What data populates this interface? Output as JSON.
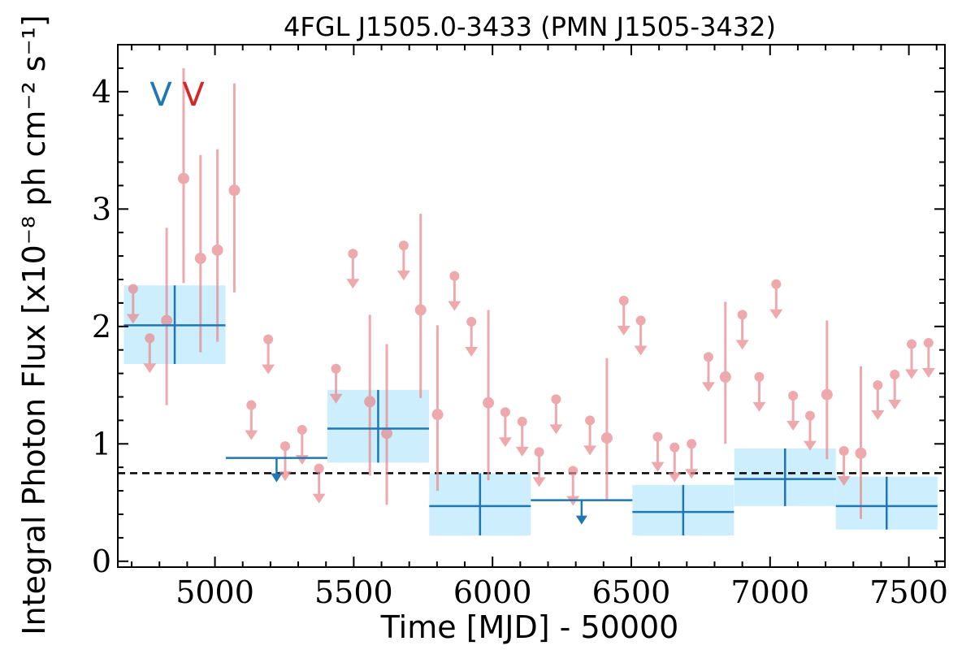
{
  "chart_data": {
    "type": "scatter",
    "title": "4FGL J1505.0-3433 (PMN J1505-3432)",
    "xlabel": "Time [MJD] - 50000",
    "ylabel": "Integral Photon Flux [x10⁻⁸ ph cm⁻² s⁻¹]",
    "xlim": [
      4650,
      7630
    ],
    "ylim": [
      -0.05,
      4.4
    ],
    "xticks": [
      5000,
      5500,
      6000,
      6500,
      7000,
      7500
    ],
    "yticks": [
      0,
      1,
      2,
      3,
      4
    ],
    "grid": false,
    "corner_marks": [
      {
        "text": "V",
        "color": "#1f77b4"
      },
      {
        "text": "V",
        "color": "#d62728"
      }
    ],
    "reference_line": {
      "y": 0.75,
      "style": "dashed",
      "color": "#000000"
    },
    "colors": {
      "long_bins": "#1f77b4",
      "long_bins_band": "#cdeefc",
      "short_bins": "#e8898d"
    },
    "series": [
      {
        "kind": "long-bins",
        "color": "#1f77b4",
        "points": [
          {
            "x": 4855,
            "xerr": 183,
            "y": 2.01,
            "ylo": 1.68,
            "yhi": 2.35
          },
          {
            "x": 5222,
            "xerr": 183,
            "y": 0.88,
            "upper_limit": true
          },
          {
            "x": 5588,
            "xerr": 183,
            "y": 1.13,
            "ylo": 0.84,
            "yhi": 1.46
          },
          {
            "x": 5955,
            "xerr": 183,
            "y": 0.47,
            "ylo": 0.22,
            "yhi": 0.75
          },
          {
            "x": 6321,
            "xerr": 183,
            "y": 0.52,
            "upper_limit": true
          },
          {
            "x": 6687,
            "xerr": 183,
            "y": 0.42,
            "ylo": 0.22,
            "yhi": 0.65
          },
          {
            "x": 7054,
            "xerr": 183,
            "y": 0.7,
            "ylo": 0.47,
            "yhi": 0.96
          },
          {
            "x": 7420,
            "xerr": 183,
            "y": 0.47,
            "ylo": 0.27,
            "yhi": 0.72
          }
        ]
      },
      {
        "kind": "short-bins",
        "color": "#e8898d",
        "points": [
          {
            "x": 4705,
            "y": 2.32,
            "upper_limit": true
          },
          {
            "x": 4765,
            "y": 1.9,
            "upper_limit": true
          },
          {
            "x": 4826,
            "y": 2.05,
            "ylo": 1.33,
            "yhi": 2.84
          },
          {
            "x": 4887,
            "y": 3.26,
            "ylo": 2.37,
            "yhi": 4.2
          },
          {
            "x": 4948,
            "y": 2.58,
            "ylo": 1.78,
            "yhi": 3.46
          },
          {
            "x": 5009,
            "y": 2.65,
            "ylo": 1.87,
            "yhi": 3.51
          },
          {
            "x": 5070,
            "y": 3.16,
            "ylo": 2.29,
            "yhi": 4.07
          },
          {
            "x": 5131,
            "y": 1.33,
            "upper_limit": true
          },
          {
            "x": 5192,
            "y": 1.89,
            "upper_limit": true
          },
          {
            "x": 5253,
            "y": 0.98,
            "upper_limit": true
          },
          {
            "x": 5314,
            "y": 1.12,
            "upper_limit": true
          },
          {
            "x": 5375,
            "y": 0.79,
            "upper_limit": true
          },
          {
            "x": 5436,
            "y": 1.64,
            "upper_limit": true
          },
          {
            "x": 5497,
            "y": 2.62,
            "upper_limit": true
          },
          {
            "x": 5558,
            "y": 1.36,
            "ylo": 0.73,
            "yhi": 2.1
          },
          {
            "x": 5619,
            "y": 1.09,
            "ylo": 0.48,
            "yhi": 1.85
          },
          {
            "x": 5680,
            "y": 2.69,
            "upper_limit": true
          },
          {
            "x": 5741,
            "y": 2.14,
            "ylo": 1.39,
            "yhi": 2.96
          },
          {
            "x": 5802,
            "y": 1.25,
            "ylo": 0.6,
            "yhi": 2.01
          },
          {
            "x": 5863,
            "y": 2.43,
            "upper_limit": true
          },
          {
            "x": 5924,
            "y": 2.04,
            "upper_limit": true
          },
          {
            "x": 5985,
            "y": 1.35,
            "ylo": 0.69,
            "yhi": 2.14
          },
          {
            "x": 6046,
            "y": 1.27,
            "upper_limit": true
          },
          {
            "x": 6107,
            "y": 1.19,
            "upper_limit": true
          },
          {
            "x": 6168,
            "y": 0.93,
            "upper_limit": true
          },
          {
            "x": 6229,
            "y": 1.38,
            "upper_limit": true
          },
          {
            "x": 6290,
            "y": 0.77,
            "upper_limit": true
          },
          {
            "x": 6351,
            "y": 1.2,
            "upper_limit": true
          },
          {
            "x": 6412,
            "y": 1.05,
            "ylo": 0.52,
            "yhi": 1.73
          },
          {
            "x": 6473,
            "y": 2.22,
            "upper_limit": true
          },
          {
            "x": 6534,
            "y": 2.05,
            "upper_limit": true
          },
          {
            "x": 6595,
            "y": 1.06,
            "upper_limit": true
          },
          {
            "x": 6656,
            "y": 0.97,
            "upper_limit": true
          },
          {
            "x": 6717,
            "y": 1.0,
            "upper_limit": true
          },
          {
            "x": 6778,
            "y": 1.74,
            "upper_limit": true
          },
          {
            "x": 6839,
            "y": 1.57,
            "ylo": 1.0,
            "yhi": 2.21
          },
          {
            "x": 6900,
            "y": 2.1,
            "upper_limit": true
          },
          {
            "x": 6961,
            "y": 1.57,
            "upper_limit": true
          },
          {
            "x": 7022,
            "y": 2.36,
            "upper_limit": true
          },
          {
            "x": 7083,
            "y": 1.41,
            "upper_limit": true
          },
          {
            "x": 7144,
            "y": 1.24,
            "upper_limit": true
          },
          {
            "x": 7205,
            "y": 1.42,
            "ylo": 0.87,
            "yhi": 2.05
          },
          {
            "x": 7266,
            "y": 0.94,
            "upper_limit": true
          },
          {
            "x": 7327,
            "y": 0.92,
            "ylo": 0.36,
            "yhi": 1.66
          },
          {
            "x": 7388,
            "y": 1.5,
            "upper_limit": true
          },
          {
            "x": 7449,
            "y": 1.59,
            "upper_limit": true
          },
          {
            "x": 7510,
            "y": 1.85,
            "upper_limit": true
          },
          {
            "x": 7571,
            "y": 1.86,
            "upper_limit": true
          }
        ]
      }
    ]
  }
}
